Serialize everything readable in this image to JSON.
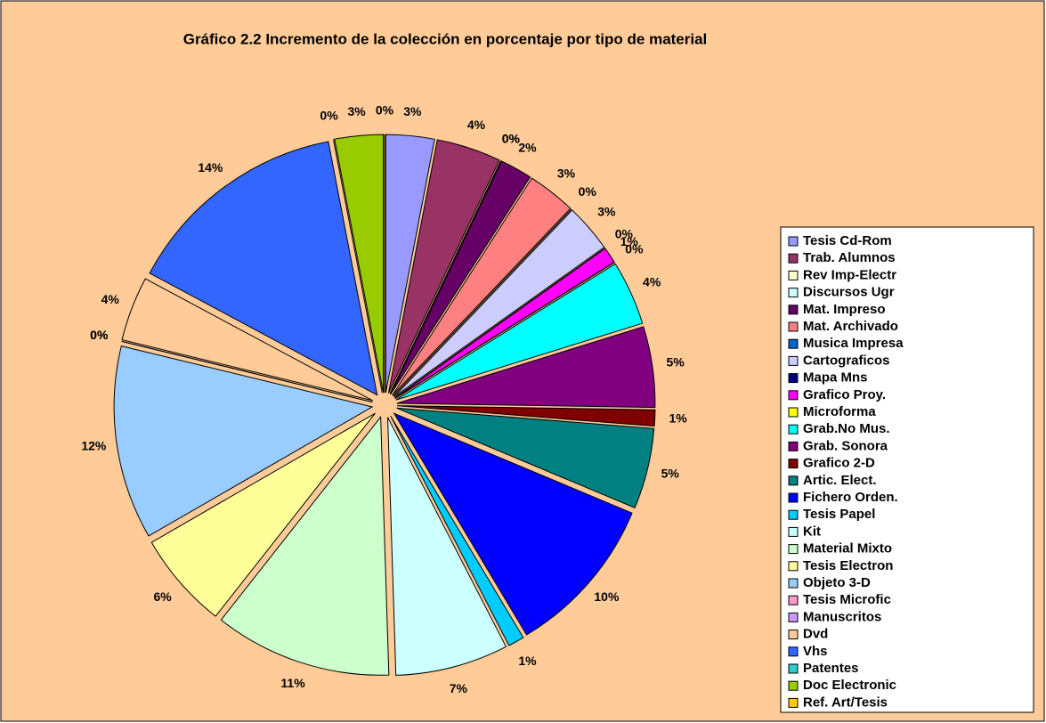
{
  "chart_data": {
    "type": "pie",
    "title": "Gráfico 2.2 Incremento de la colección en porcentaje por tipo de material",
    "categories": [
      "Tesis Cd-Rom",
      "Trab. Alumnos",
      "Rev Imp-Electr",
      "Discursos Ugr",
      "Mat. Impreso",
      "Mat. Archivado",
      "Musica Impresa",
      "Cartograficos",
      "Mapa Mns",
      "Grafico Proy.",
      "Microforma",
      "Grab.No Mus.",
      "Grab. Sonora",
      "Grafico 2-D",
      "Artic. Elect.",
      "Fichero Orden.",
      "Tesis Papel",
      "Kit",
      "Material Mixto",
      "Tesis Electron",
      "Objeto 3-D",
      "Tesis Microfic",
      "Manuscritos",
      "Dvd",
      "Vhs",
      "Patentes",
      "Doc Electronic",
      "Ref. Art/Tesis"
    ],
    "values": [
      3,
      4,
      0,
      0,
      2,
      3,
      0,
      3,
      0,
      1,
      0,
      4,
      5,
      1,
      5,
      10,
      1,
      7,
      11,
      6,
      12,
      0,
      0,
      4,
      14,
      0,
      3,
      0
    ],
    "value_labels": [
      "3%",
      "4%",
      "0%",
      "0%",
      "2%",
      "3%",
      "0%",
      "3%",
      "0%",
      "1%",
      "0%",
      "4%",
      "5%",
      "1%",
      "5%",
      "10%",
      "1%",
      "7%",
      "11%",
      "6%",
      "12%",
      "0%",
      "0%",
      "4%",
      "14%",
      "0%",
      "3%",
      "0%"
    ],
    "colors": [
      "#9999FF",
      "#993366",
      "#FFFFCC",
      "#CCFFFF",
      "#660066",
      "#FF8080",
      "#0066CC",
      "#CCCCFF",
      "#000080",
      "#FF00FF",
      "#FFFF00",
      "#00FFFF",
      "#800080",
      "#800000",
      "#008080",
      "#0000FF",
      "#00CCFF",
      "#CCFFFF",
      "#CCFFCC",
      "#FFFF99",
      "#99CCFF",
      "#FF99CC",
      "#CC99FF",
      "#FFCC99",
      "#3366FF",
      "#33CCCC",
      "#99CC00",
      "#FFCC00"
    ],
    "legend": "right"
  }
}
